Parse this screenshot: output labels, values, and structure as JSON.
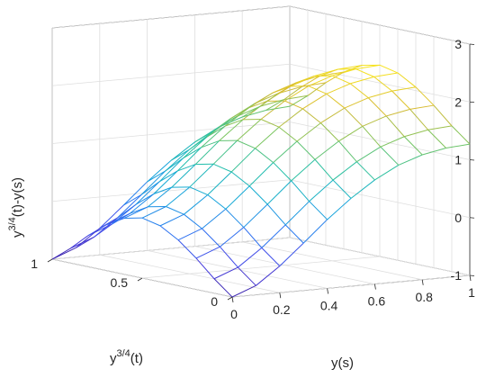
{
  "chart_data": {
    "type": "surface",
    "x_axis": {
      "label_base": "y",
      "label_sup": "3/4",
      "label_suffix": "(t)",
      "range": [
        0,
        1
      ],
      "ticks": [
        0,
        0.5,
        1
      ],
      "tick_labels": [
        "0",
        "0.5",
        "1"
      ]
    },
    "y_axis": {
      "label": "y(s)",
      "range": [
        0,
        1
      ],
      "ticks": [
        0,
        0.2,
        0.4,
        0.6,
        0.8,
        1
      ],
      "tick_labels": [
        "0",
        "0.2",
        "0.4",
        "0.6",
        "0.8",
        "1"
      ]
    },
    "z_axis": {
      "label_base": "y",
      "label_sup": "3/4",
      "label_suffix": "(t)-y(s)",
      "range": [
        -1,
        3
      ],
      "ticks": [
        -1,
        0,
        1,
        2,
        3
      ],
      "tick_labels": [
        "-1",
        "0",
        "1",
        "2",
        "3"
      ]
    },
    "grid": true,
    "colormap": "parula",
    "mesh_n": 11,
    "x_values": [
      0,
      0.1,
      0.2,
      0.3,
      0.4,
      0.5,
      0.6,
      0.7,
      0.8,
      0.9,
      1.0
    ],
    "y_values": [
      0,
      0.1,
      0.2,
      0.3,
      0.4,
      0.5,
      0.6,
      0.7,
      0.8,
      0.9,
      1.0
    ],
    "z_values": [
      [
        -1.0,
        -0.75,
        -0.46,
        -0.21,
        -0.03,
        0.04,
        -0.03,
        -0.21,
        -0.46,
        -0.75,
        -1.0
      ],
      [
        -0.84,
        -0.59,
        -0.3,
        -0.05,
        0.13,
        0.2,
        0.13,
        -0.05,
        -0.3,
        -0.59,
        -0.84
      ],
      [
        -0.54,
        -0.29,
        0.0,
        0.25,
        0.43,
        0.5,
        0.43,
        0.25,
        0.0,
        -0.29,
        -0.54
      ],
      [
        -0.18,
        0.07,
        0.36,
        0.61,
        0.79,
        0.86,
        0.79,
        0.61,
        0.36,
        0.07,
        -0.18
      ],
      [
        0.19,
        0.44,
        0.73,
        0.98,
        1.16,
        1.23,
        1.16,
        0.98,
        0.73,
        0.44,
        0.19
      ],
      [
        0.52,
        0.77,
        1.06,
        1.31,
        1.49,
        1.56,
        1.49,
        1.31,
        1.06,
        0.77,
        0.52
      ],
      [
        0.8,
        1.05,
        1.34,
        1.59,
        1.77,
        1.84,
        1.77,
        1.59,
        1.34,
        1.05,
        0.8
      ],
      [
        1.02,
        1.27,
        1.56,
        1.81,
        1.99,
        2.06,
        1.99,
        1.81,
        1.56,
        1.27,
        1.02
      ],
      [
        1.16,
        1.41,
        1.7,
        1.95,
        2.13,
        2.2,
        2.13,
        1.95,
        1.7,
        1.41,
        1.16
      ],
      [
        1.24,
        1.49,
        1.78,
        2.03,
        2.21,
        2.28,
        2.21,
        2.03,
        1.78,
        1.49,
        1.24
      ],
      [
        1.27,
        1.52,
        1.81,
        2.06,
        2.24,
        2.31,
        2.24,
        2.06,
        1.81,
        1.52,
        1.27
      ]
    ]
  }
}
